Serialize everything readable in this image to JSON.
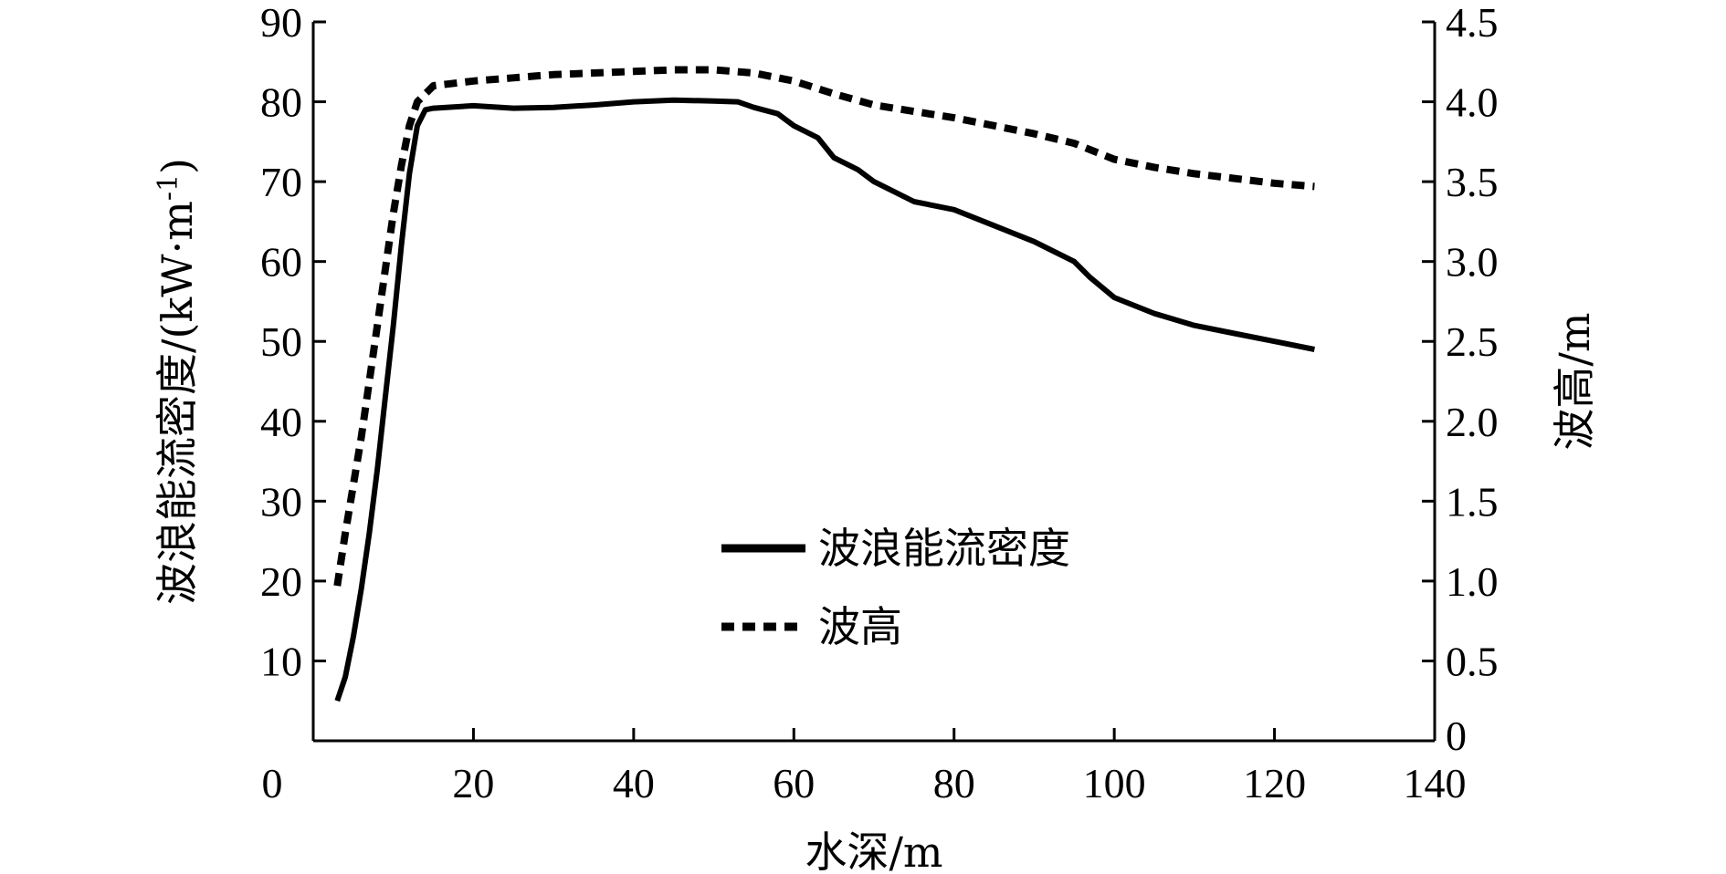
{
  "chart_data": {
    "type": "line",
    "xlabel": "水深/m",
    "ylabel_left": "波浪能流密度/(kW·m",
    "ylabel_left_sup": "-1",
    "ylabel_left_close": ")",
    "ylabel_right": "波高/m",
    "xlim": [
      0,
      140
    ],
    "ylim_left": [
      0,
      90
    ],
    "ylim_right": [
      0,
      4.5
    ],
    "x_ticks": [
      "0",
      "20",
      "40",
      "60",
      "80",
      "100",
      "120",
      "140"
    ],
    "y_left_ticks": [
      "10",
      "20",
      "30",
      "40",
      "50",
      "60",
      "70",
      "80",
      "90"
    ],
    "y_right_ticks": [
      "0",
      "0.5",
      "1.0",
      "1.5",
      "2.0",
      "2.5",
      "3.0",
      "3.5",
      "4.0",
      "4.5"
    ],
    "grid": false,
    "legend_position": "center",
    "series": [
      {
        "name": "波浪能流密度",
        "axis": "left",
        "style": "solid",
        "x": [
          3,
          4,
          5,
          6,
          7,
          8,
          9,
          10,
          11,
          12,
          13,
          14,
          15,
          20,
          25,
          30,
          35,
          40,
          45,
          50,
          53,
          55,
          58,
          60,
          63,
          65,
          68,
          70,
          75,
          80,
          85,
          90,
          95,
          97,
          100,
          105,
          110,
          115,
          120,
          125
        ],
        "values": [
          5,
          8,
          13,
          19,
          26,
          34,
          43,
          52,
          62,
          71,
          77,
          79,
          79.2,
          79.5,
          79.2,
          79.3,
          79.6,
          80,
          80.2,
          80.1,
          80,
          79.3,
          78.5,
          77,
          75.5,
          73,
          71.5,
          70,
          67.5,
          66.5,
          64.5,
          62.5,
          60,
          58,
          55.5,
          53.5,
          52,
          51,
          50,
          49
        ]
      },
      {
        "name": "波高",
        "axis": "right",
        "style": "dashed",
        "x": [
          3,
          4,
          5,
          6,
          7,
          8,
          9,
          10,
          11,
          12,
          13,
          15,
          20,
          25,
          30,
          35,
          40,
          45,
          50,
          55,
          60,
          65,
          70,
          75,
          80,
          85,
          90,
          95,
          100,
          105,
          110,
          115,
          120,
          125
        ],
        "values": [
          0.97,
          1.3,
          1.6,
          1.9,
          2.25,
          2.6,
          2.95,
          3.3,
          3.6,
          3.85,
          4.0,
          4.1,
          4.13,
          4.15,
          4.17,
          4.18,
          4.19,
          4.2,
          4.2,
          4.18,
          4.13,
          4.05,
          3.98,
          3.94,
          3.9,
          3.85,
          3.8,
          3.74,
          3.64,
          3.59,
          3.55,
          3.52,
          3.49,
          3.47
        ]
      }
    ]
  }
}
